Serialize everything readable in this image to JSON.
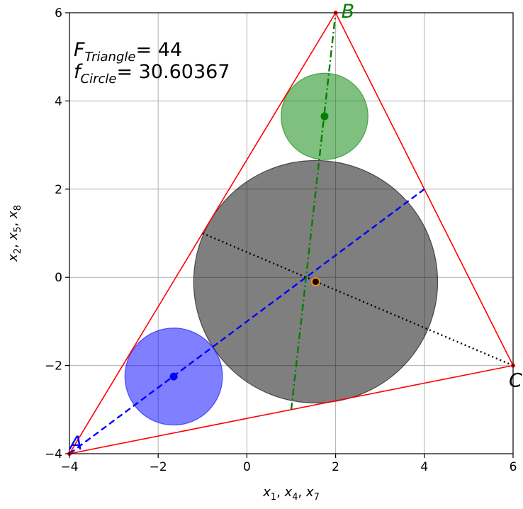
{
  "chart_data": {
    "type": "scatter",
    "xlabel": {
      "vars": [
        "x",
        "x",
        "x"
      ],
      "subs": [
        "1",
        "4",
        "7"
      ]
    },
    "ylabel": {
      "vars": [
        "x",
        "x",
        "x"
      ],
      "subs": [
        "2",
        "5",
        "8"
      ]
    },
    "xlim": [
      -4,
      6
    ],
    "ylim": [
      -4,
      6
    ],
    "xticks": [
      -4,
      -2,
      0,
      2,
      4,
      6
    ],
    "yticks": [
      -4,
      -2,
      0,
      2,
      4,
      6
    ],
    "xtick_labels": [
      "−4",
      "−2",
      "0",
      "2",
      "4",
      "6"
    ],
    "ytick_labels": [
      "−4",
      "−2",
      "0",
      "2",
      "4",
      "6"
    ],
    "grid": true,
    "annotations": {
      "triangle": {
        "symbol": "F",
        "sub": "Triangle",
        "value": "= 44"
      },
      "circle": {
        "symbol": "f",
        "sub": "Circle",
        "value": "= 30.60367"
      }
    },
    "triangle": {
      "color": "#ff0000",
      "vertices": [
        {
          "label": "A",
          "x": -4,
          "y": -4,
          "color": "#0000ff"
        },
        {
          "label": "B",
          "x": 2,
          "y": 6,
          "color": "#008000"
        },
        {
          "label": "C",
          "x": 6,
          "y": -2,
          "color": "#000000"
        }
      ]
    },
    "circles": [
      {
        "name": "grey",
        "cx": 1.55,
        "cy": -0.1,
        "r": 2.75,
        "fill": "#000000",
        "alpha": 0.5
      },
      {
        "name": "green",
        "cx": 1.75,
        "cy": 3.65,
        "r": 0.98,
        "fill": "#008000",
        "alpha": 0.5
      },
      {
        "name": "blue",
        "cx": -1.65,
        "cy": -2.25,
        "r": 1.1,
        "fill": "#0000ff",
        "alpha": 0.5
      }
    ],
    "lines": [
      {
        "name": "blue-dashed",
        "color": "#0000ff",
        "style": "dashed",
        "points": [
          [
            -4,
            -4
          ],
          [
            4,
            2
          ]
        ]
      },
      {
        "name": "green-dashdot",
        "color": "#008000",
        "style": "dashdot",
        "points": [
          [
            1,
            -3
          ],
          [
            2,
            6
          ]
        ]
      },
      {
        "name": "black-dotted",
        "color": "#000000",
        "style": "dotted",
        "points": [
          [
            -1,
            1
          ],
          [
            6,
            -2
          ]
        ]
      }
    ],
    "points": [
      {
        "name": "blue-center",
        "x": -1.65,
        "y": -2.25,
        "color": "#0000ff"
      },
      {
        "name": "green-center",
        "x": 1.75,
        "y": 3.65,
        "color": "#008000"
      },
      {
        "name": "grey-center",
        "x": 1.55,
        "y": -0.1,
        "color": "#000000",
        "edge": "#ff8c1a"
      }
    ]
  }
}
